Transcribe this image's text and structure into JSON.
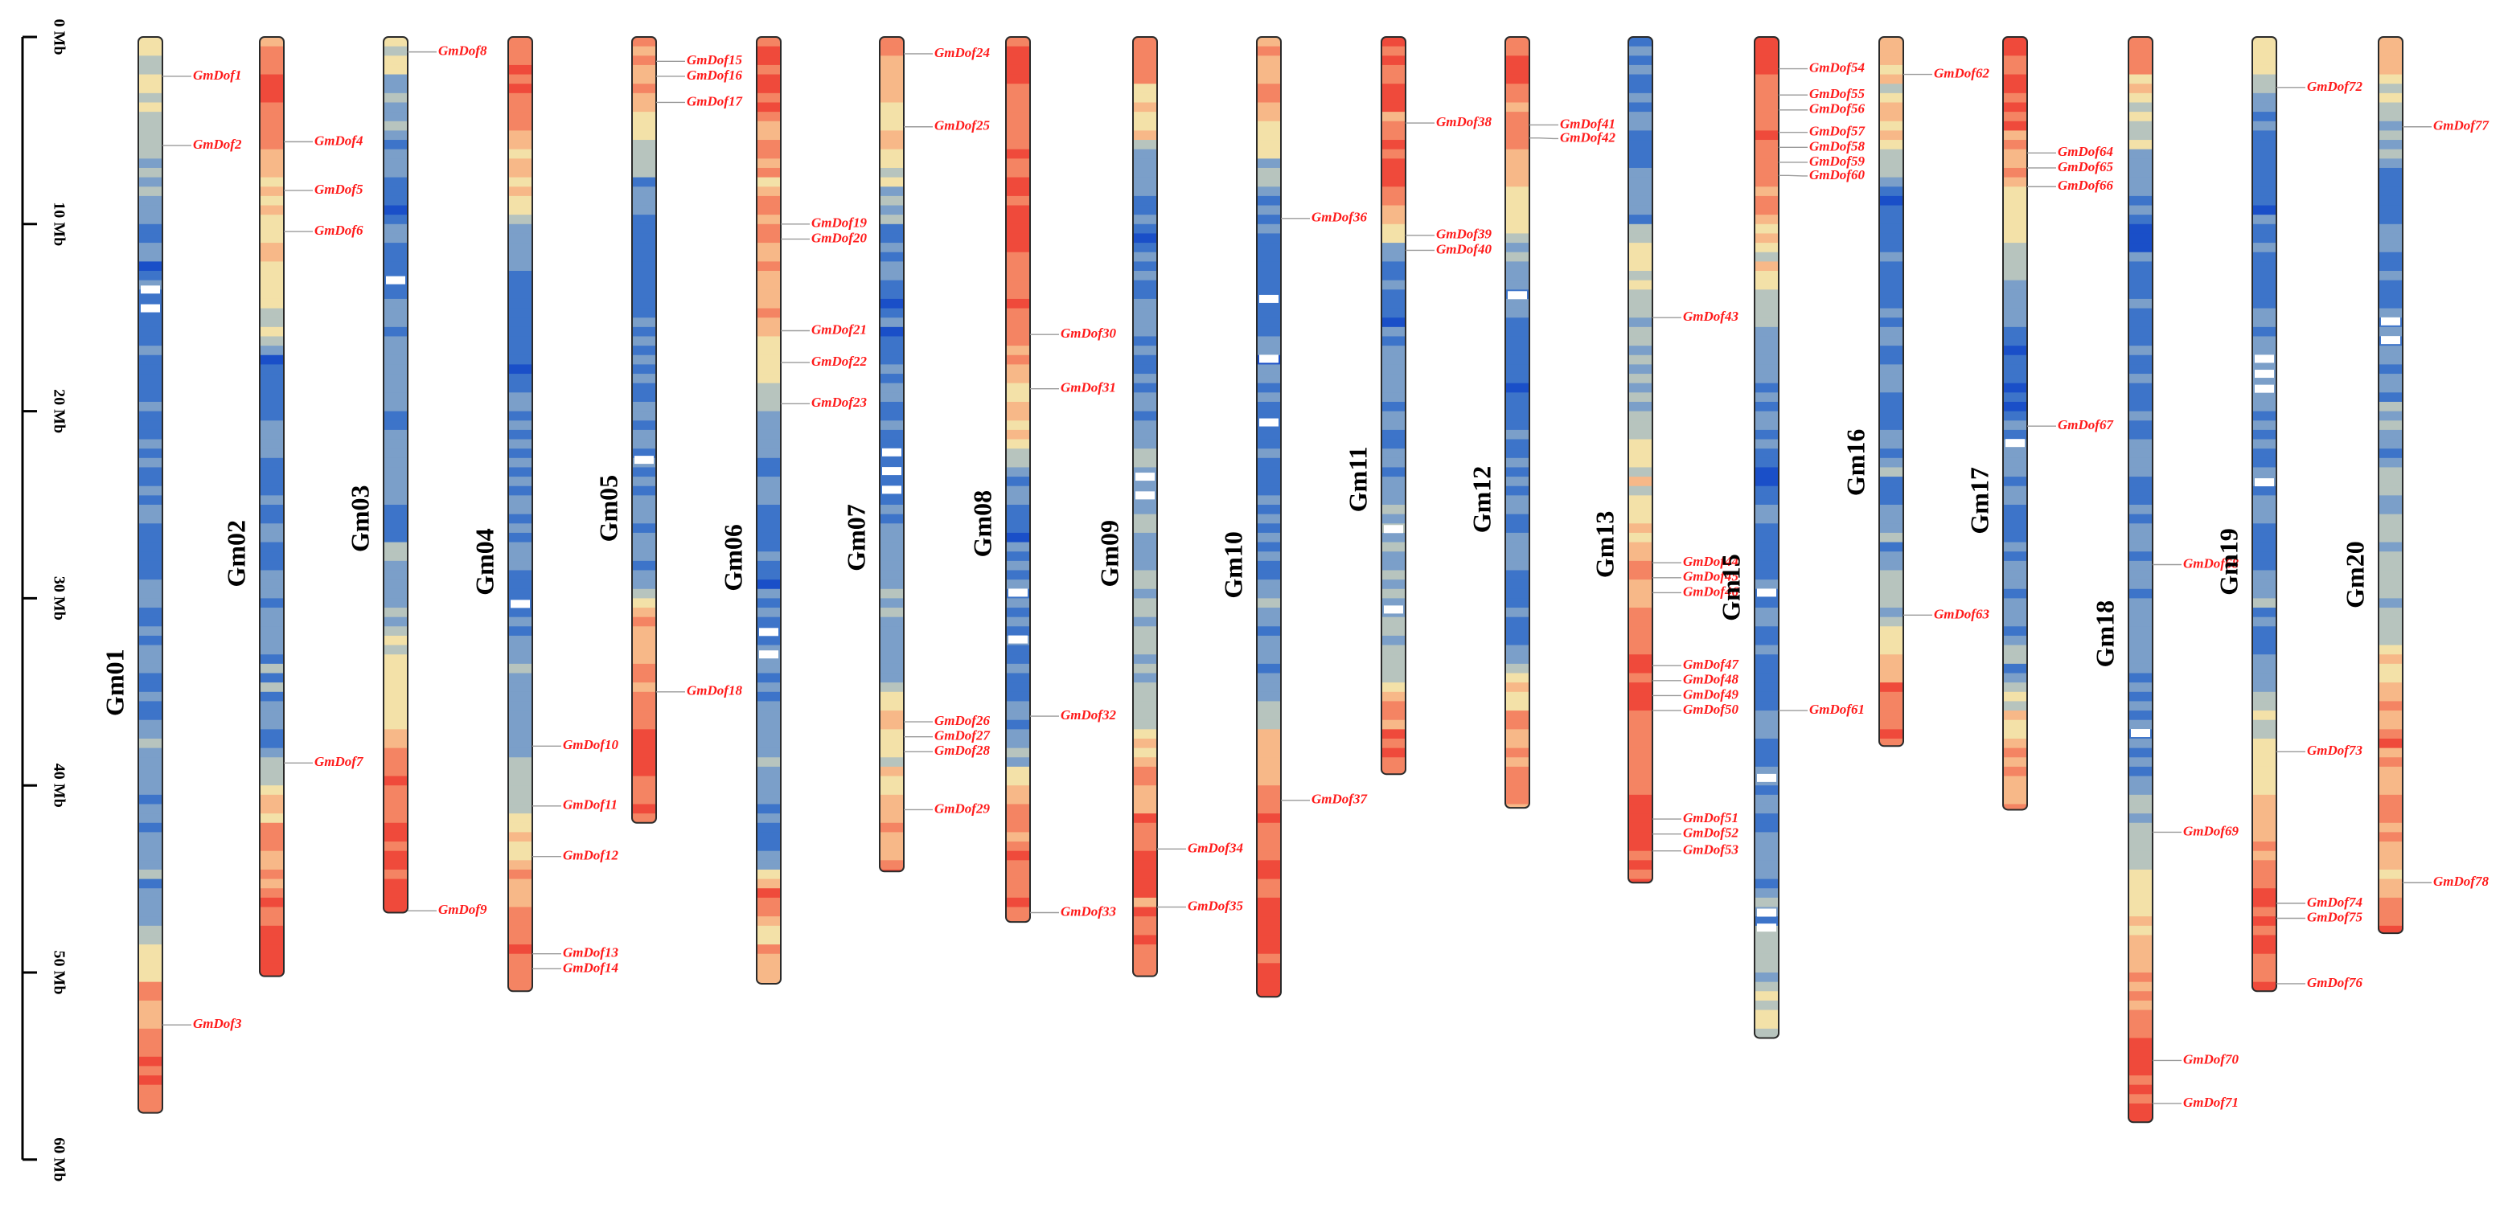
{
  "scale": {
    "max_mb": 60,
    "ticks": [
      {
        "value": 0,
        "label": "0 Mb"
      },
      {
        "value": 10,
        "label": "10 Mb"
      },
      {
        "value": 20,
        "label": "20 Mb"
      },
      {
        "value": 30,
        "label": "30 Mb"
      },
      {
        "value": 40,
        "label": "40 Mb"
      },
      {
        "value": 50,
        "label": "50 Mb"
      },
      {
        "value": 60,
        "label": "60 Mb"
      }
    ]
  },
  "density_colors": [
    "#1a4fc8",
    "#3d74c9",
    "#7b9fc9",
    "#b7c4be",
    "#f3e1a8",
    "#f7b888",
    "#f48463",
    "#ef4a3b"
  ],
  "marker_color": "#ff1a1a",
  "chromosomes": [
    {
      "name": "Gm01",
      "length": 57.5,
      "profile": [
        [
          0,
          4
        ],
        [
          6,
          3
        ],
        [
          9,
          2
        ],
        [
          12,
          1
        ],
        [
          46,
          2
        ],
        [
          49,
          3
        ],
        [
          50,
          5
        ],
        [
          54,
          6
        ],
        [
          56,
          7
        ],
        [
          57.5,
          7
        ]
      ],
      "gaps": [
        13.5,
        14.5
      ],
      "genes": [
        [
          "GmDof1",
          2.1
        ],
        [
          "GmDof2",
          5.8
        ],
        [
          "GmDof3",
          52.8
        ]
      ]
    },
    {
      "name": "Gm02",
      "length": 50.2,
      "profile": [
        [
          0,
          6
        ],
        [
          3,
          7
        ],
        [
          5,
          6
        ],
        [
          7,
          5
        ],
        [
          11,
          4
        ],
        [
          13,
          5
        ],
        [
          16,
          3
        ],
        [
          17,
          1
        ],
        [
          38,
          2
        ],
        [
          40,
          4
        ],
        [
          43,
          5
        ],
        [
          46,
          6
        ],
        [
          49,
          7
        ],
        [
          50.2,
          7
        ]
      ],
      "gaps": [],
      "genes": [
        [
          "GmDof4",
          5.6
        ],
        [
          "GmDof5",
          8.2
        ],
        [
          "GmDof6",
          10.4
        ],
        [
          "GmDof7",
          38.8
        ]
      ]
    },
    {
      "name": "Gm03",
      "length": 46.8,
      "profile": [
        [
          0,
          4
        ],
        [
          2,
          3
        ],
        [
          5,
          2
        ],
        [
          9,
          1
        ],
        [
          28,
          2
        ],
        [
          32,
          3
        ],
        [
          34,
          4
        ],
        [
          37,
          5
        ],
        [
          40,
          6
        ],
        [
          44,
          7
        ],
        [
          46.8,
          6
        ]
      ],
      "gaps": [
        13.0
      ],
      "genes": [
        [
          "GmDof8",
          0.8
        ],
        [
          "GmDof9",
          46.7
        ]
      ]
    },
    {
      "name": "Gm04",
      "length": 51.0,
      "profile": [
        [
          0,
          7
        ],
        [
          3,
          6
        ],
        [
          6,
          5
        ],
        [
          9,
          4
        ],
        [
          11,
          2
        ],
        [
          13,
          1
        ],
        [
          36,
          2
        ],
        [
          40,
          3
        ],
        [
          43,
          4
        ],
        [
          45,
          5
        ],
        [
          48,
          6
        ],
        [
          51,
          6
        ]
      ],
      "gaps": [
        30.3
      ],
      "genes": [
        [
          "GmDof10",
          37.9
        ],
        [
          "GmDof11",
          41.1
        ],
        [
          "GmDof12",
          43.8
        ],
        [
          "GmDof13",
          49.0
        ],
        [
          "GmDof14",
          49.8
        ]
      ]
    },
    {
      "name": "Gm05",
      "length": 42.0,
      "profile": [
        [
          0,
          6
        ],
        [
          3,
          5
        ],
        [
          6,
          3
        ],
        [
          8,
          2
        ],
        [
          10,
          1
        ],
        [
          29,
          2
        ],
        [
          31,
          5
        ],
        [
          34,
          6
        ],
        [
          38,
          7
        ],
        [
          42,
          6
        ]
      ],
      "gaps": [
        22.6
      ],
      "genes": [
        [
          "GmDof15",
          1.3
        ],
        [
          "GmDof16",
          2.1
        ],
        [
          "GmDof17",
          3.5
        ],
        [
          "GmDof18",
          35.0
        ]
      ]
    },
    {
      "name": "Gm06",
      "length": 50.6,
      "profile": [
        [
          0,
          7
        ],
        [
          4,
          6
        ],
        [
          8,
          5
        ],
        [
          12,
          6
        ],
        [
          16,
          5
        ],
        [
          19,
          3
        ],
        [
          22,
          2
        ],
        [
          25,
          1
        ],
        [
          44,
          2
        ],
        [
          46,
          7
        ],
        [
          47,
          5
        ],
        [
          50.6,
          5
        ]
      ],
      "gaps": [
        31.8,
        33.0
      ],
      "genes": [
        [
          "GmDof19",
          10.0
        ],
        [
          "GmDof20",
          10.8
        ],
        [
          "GmDof21",
          15.7
        ],
        [
          "GmDof22",
          17.4
        ],
        [
          "GmDof23",
          19.6
        ]
      ]
    },
    {
      "name": "Gm07",
      "length": 44.6,
      "profile": [
        [
          0,
          6
        ],
        [
          3,
          5
        ],
        [
          6,
          4
        ],
        [
          8,
          3
        ],
        [
          10,
          2
        ],
        [
          12,
          1
        ],
        [
          34,
          2
        ],
        [
          36,
          5
        ],
        [
          38,
          4
        ],
        [
          42,
          5
        ],
        [
          44.6,
          6
        ]
      ],
      "gaps": [
        22.2,
        23.2,
        24.2
      ],
      "genes": [
        [
          "GmDof24",
          0.9
        ],
        [
          "GmDof25",
          4.8
        ],
        [
          "GmDof26",
          36.6
        ],
        [
          "GmDof27",
          37.4
        ],
        [
          "GmDof28",
          38.2
        ],
        [
          "GmDof29",
          41.3
        ]
      ]
    },
    {
      "name": "Gm08",
      "length": 47.3,
      "profile": [
        [
          0,
          7
        ],
        [
          5,
          6
        ],
        [
          10,
          7
        ],
        [
          15,
          6
        ],
        [
          19,
          5
        ],
        [
          22,
          4
        ],
        [
          24,
          1
        ],
        [
          38,
          2
        ],
        [
          40,
          5
        ],
        [
          42,
          6
        ],
        [
          47.3,
          6
        ]
      ],
      "gaps": [
        29.7,
        32.2
      ],
      "genes": [
        [
          "GmDof30",
          15.9
        ],
        [
          "GmDof31",
          18.8
        ],
        [
          "GmDof32",
          36.3
        ],
        [
          "GmDof33",
          46.8
        ]
      ]
    },
    {
      "name": "Gm09",
      "length": 50.2,
      "profile": [
        [
          0,
          6
        ],
        [
          3,
          5
        ],
        [
          5,
          4
        ],
        [
          7,
          2
        ],
        [
          9,
          1
        ],
        [
          37,
          3
        ],
        [
          38,
          5
        ],
        [
          42,
          6
        ],
        [
          45,
          7
        ],
        [
          46,
          6
        ],
        [
          50.2,
          6
        ]
      ],
      "gaps": [
        23.5,
        24.5
      ],
      "genes": [
        [
          "GmDof34",
          43.4
        ],
        [
          "GmDof35",
          46.5
        ]
      ]
    },
    {
      "name": "Gm10",
      "length": 51.3,
      "profile": [
        [
          0,
          6
        ],
        [
          4,
          5
        ],
        [
          6,
          4
        ],
        [
          8,
          2
        ],
        [
          10,
          1
        ],
        [
          36,
          2
        ],
        [
          37,
          4
        ],
        [
          38,
          5
        ],
        [
          41,
          6
        ],
        [
          46,
          7
        ],
        [
          51.3,
          7
        ]
      ],
      "gaps": [
        14.0,
        17.2,
        20.6
      ],
      "genes": [
        [
          "GmDof36",
          9.7
        ],
        [
          "GmDof37",
          40.8
        ]
      ]
    },
    {
      "name": "Gm11",
      "length": 39.4,
      "profile": [
        [
          0,
          7
        ],
        [
          4,
          6
        ],
        [
          8,
          7
        ],
        [
          10,
          5
        ],
        [
          11,
          3
        ],
        [
          12,
          2
        ],
        [
          14,
          1
        ],
        [
          34,
          3
        ],
        [
          35,
          5
        ],
        [
          36,
          6
        ],
        [
          39.4,
          7
        ]
      ],
      "gaps": [
        26.3,
        30.6
      ],
      "genes": [
        [
          "GmDof38",
          4.6
        ],
        [
          "GmDof39",
          10.6
        ],
        [
          "GmDof40",
          11.4
        ]
      ]
    },
    {
      "name": "Gm12",
      "length": 41.2,
      "profile": [
        [
          0,
          7
        ],
        [
          3,
          6
        ],
        [
          6,
          5
        ],
        [
          9,
          4
        ],
        [
          11,
          3
        ],
        [
          13,
          2
        ],
        [
          15,
          1
        ],
        [
          33,
          2
        ],
        [
          34,
          4
        ],
        [
          36,
          5
        ],
        [
          38,
          6
        ],
        [
          41.2,
          6
        ]
      ],
      "gaps": [
        13.8
      ],
      "genes": [
        [
          "GmDof41",
          4.7
        ],
        [
          "GmDof42",
          5.4
        ]
      ]
    },
    {
      "name": "Gm13",
      "length": 45.2,
      "profile": [
        [
          0,
          1
        ],
        [
          10,
          2
        ],
        [
          12,
          4
        ],
        [
          14,
          3
        ],
        [
          17,
          2
        ],
        [
          20,
          3
        ],
        [
          24,
          4
        ],
        [
          27,
          5
        ],
        [
          32,
          6
        ],
        [
          35,
          7
        ],
        [
          38,
          6
        ],
        [
          41,
          7
        ],
        [
          45.2,
          7
        ]
      ],
      "gaps": [],
      "genes": [
        [
          "GmDof43",
          15.0
        ],
        [
          "GmDof44",
          28.1
        ],
        [
          "GmDof45",
          28.9
        ],
        [
          "GmDof46",
          29.7
        ],
        [
          "GmDof47",
          33.6
        ],
        [
          "GmDof48",
          34.4
        ],
        [
          "GmDof49",
          35.2
        ],
        [
          "GmDof50",
          36.0
        ],
        [
          "GmDof51",
          41.8
        ],
        [
          "GmDof52",
          42.6
        ],
        [
          "GmDof53",
          43.5
        ]
      ]
    },
    {
      "name": "Gm15",
      "length": 53.5,
      "profile": [
        [
          0,
          7
        ],
        [
          5,
          6
        ],
        [
          9,
          5
        ],
        [
          12,
          4
        ],
        [
          15,
          3
        ],
        [
          17,
          2
        ],
        [
          20,
          1
        ],
        [
          47,
          2
        ],
        [
          50,
          3
        ],
        [
          53.5,
          3
        ]
      ],
      "gaps": [
        29.7,
        39.6,
        46.8,
        47.6
      ],
      "genes": [
        [
          "GmDof54",
          1.7
        ],
        [
          "GmDof55",
          3.1
        ],
        [
          "GmDof56",
          3.9
        ],
        [
          "GmDof57",
          5.1
        ],
        [
          "GmDof58",
          5.9
        ],
        [
          "GmDof59",
          6.7
        ],
        [
          "GmDof60",
          7.4
        ],
        [
          "GmDof61",
          36.0
        ]
      ]
    },
    {
      "name": "Gm16",
      "length": 37.9,
      "profile": [
        [
          0,
          5
        ],
        [
          3,
          4
        ],
        [
          5,
          5
        ],
        [
          7,
          3
        ],
        [
          8,
          1
        ],
        [
          28,
          2
        ],
        [
          31,
          3
        ],
        [
          33,
          5
        ],
        [
          35,
          6
        ],
        [
          37.9,
          6
        ]
      ],
      "gaps": [],
      "genes": [
        [
          "GmDof62",
          2.0
        ],
        [
          "GmDof63",
          30.9
        ]
      ]
    },
    {
      "name": "Gm17",
      "length": 41.3,
      "profile": [
        [
          0,
          7
        ],
        [
          5,
          6
        ],
        [
          9,
          4
        ],
        [
          12,
          3
        ],
        [
          15,
          2
        ],
        [
          17,
          1
        ],
        [
          34,
          2
        ],
        [
          36,
          4
        ],
        [
          38,
          5
        ],
        [
          41.3,
          6
        ]
      ],
      "gaps": [
        21.7
      ],
      "genes": [
        [
          "GmDof64",
          6.2
        ],
        [
          "GmDof65",
          7.0
        ],
        [
          "GmDof66",
          8.0
        ],
        [
          "GmDof67",
          20.8
        ]
      ]
    },
    {
      "name": "Gm18",
      "length": 58.0,
      "profile": [
        [
          0,
          6
        ],
        [
          2,
          5
        ],
        [
          5,
          3
        ],
        [
          8,
          2
        ],
        [
          10,
          1
        ],
        [
          41,
          2
        ],
        [
          44,
          3
        ],
        [
          46,
          4
        ],
        [
          49,
          5
        ],
        [
          52,
          6
        ],
        [
          55,
          7
        ],
        [
          58,
          7
        ]
      ],
      "gaps": [
        37.2
      ],
      "genes": [
        [
          "GmDof68",
          28.2
        ],
        [
          "GmDof69",
          42.5
        ],
        [
          "GmDof70",
          54.7
        ],
        [
          "GmDof71",
          57.0
        ]
      ]
    },
    {
      "name": "Gm19",
      "length": 51.0,
      "profile": [
        [
          0,
          5
        ],
        [
          2,
          3
        ],
        [
          4,
          2
        ],
        [
          6,
          1
        ],
        [
          33,
          2
        ],
        [
          36,
          3
        ],
        [
          39,
          4
        ],
        [
          41,
          5
        ],
        [
          44,
          6
        ],
        [
          47,
          7
        ],
        [
          51,
          6
        ]
      ],
      "gaps": [
        17.2,
        18.0,
        18.8,
        23.8
      ],
      "genes": [
        [
          "GmDof72",
          2.7
        ],
        [
          "GmDof73",
          38.2
        ],
        [
          "GmDof74",
          46.3
        ],
        [
          "GmDof75",
          47.1
        ],
        [
          "GmDof76",
          50.6
        ]
      ]
    },
    {
      "name": "Gm20",
      "length": 47.9,
      "profile": [
        [
          0,
          4
        ],
        [
          1,
          6
        ],
        [
          2,
          4
        ],
        [
          4,
          3
        ],
        [
          6,
          2
        ],
        [
          8,
          1
        ],
        [
          32,
          3
        ],
        [
          35,
          5
        ],
        [
          38,
          6
        ],
        [
          44,
          5
        ],
        [
          47.9,
          6
        ]
      ],
      "gaps": [
        15.2,
        16.2
      ],
      "genes": [
        [
          "GmDof77",
          4.8
        ],
        [
          "GmDof78",
          45.2
        ]
      ]
    }
  ]
}
